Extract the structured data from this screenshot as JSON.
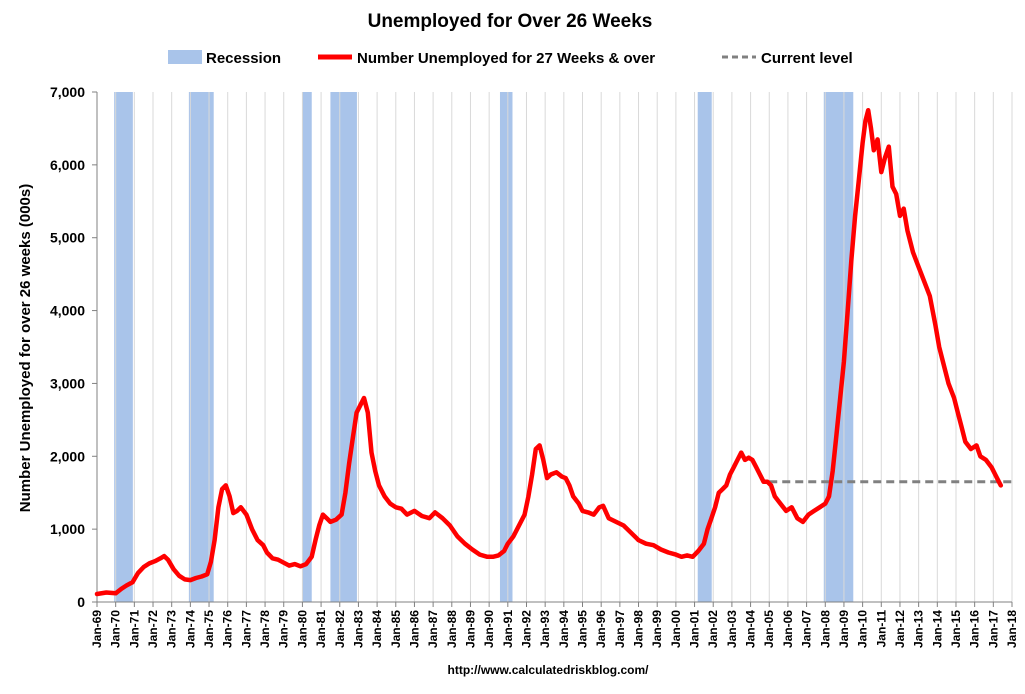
{
  "chart_data": {
    "type": "line",
    "title": "Unemployed for Over 26 Weeks",
    "ylabel": "Number Unemployed for over 26 weeks (000s)",
    "xlabel": "",
    "ylim": [
      0,
      7000
    ],
    "y_ticks": [
      "0",
      "1,000",
      "2,000",
      "3,000",
      "4,000",
      "5,000",
      "6,000",
      "7,000"
    ],
    "x_ticks": [
      "Jan-69",
      "Jan-70",
      "Jan-71",
      "Jan-72",
      "Jan-73",
      "Jan-74",
      "Jan-75",
      "Jan-76",
      "Jan-77",
      "Jan-78",
      "Jan-79",
      "Jan-80",
      "Jan-81",
      "Jan-82",
      "Jan-83",
      "Jan-84",
      "Jan-85",
      "Jan-86",
      "Jan-87",
      "Jan-88",
      "Jan-89",
      "Jan-90",
      "Jan-91",
      "Jan-92",
      "Jan-93",
      "Jan-94",
      "Jan-95",
      "Jan-96",
      "Jan-97",
      "Jan-98",
      "Jan-99",
      "Jan-00",
      "Jan-01",
      "Jan-02",
      "Jan-03",
      "Jan-04",
      "Jan-05",
      "Jan-06",
      "Jan-07",
      "Jan-08",
      "Jan-09",
      "Jan-10",
      "Jan-11",
      "Jan-12",
      "Jan-13",
      "Jan-14",
      "Jan-15",
      "Jan-16",
      "Jan-17",
      "Jan-18"
    ],
    "x_range": [
      1969.0,
      2018.0
    ],
    "grid": "vertical",
    "legend_position": "top",
    "legend": {
      "recession": "Recession",
      "series": "Number Unemployed for 27 Weeks & over",
      "current": "Current level"
    },
    "colors": {
      "recession": "#a9c4ea",
      "series": "#ff0000",
      "current": "#808080",
      "grid": "#d9d9d9"
    },
    "recessions": [
      {
        "start": 1969.92,
        "end": 1970.92
      },
      {
        "start": 1973.92,
        "end": 1975.25
      },
      {
        "start": 1980.0,
        "end": 1980.5
      },
      {
        "start": 1981.5,
        "end": 1982.92
      },
      {
        "start": 1990.58,
        "end": 1991.25
      },
      {
        "start": 2001.17,
        "end": 2001.92
      },
      {
        "start": 2007.92,
        "end": 2009.5
      }
    ],
    "current_level": {
      "value": 1650,
      "from": 2005.0,
      "to": 2018.0
    },
    "series": [
      {
        "name": "Number Unemployed for 27 Weeks & over",
        "points": [
          [
            1969.0,
            110
          ],
          [
            1969.5,
            130
          ],
          [
            1970.0,
            120
          ],
          [
            1970.3,
            180
          ],
          [
            1970.6,
            230
          ],
          [
            1970.9,
            270
          ],
          [
            1971.2,
            400
          ],
          [
            1971.5,
            480
          ],
          [
            1971.8,
            530
          ],
          [
            1972.1,
            560
          ],
          [
            1972.4,
            600
          ],
          [
            1972.6,
            630
          ],
          [
            1972.8,
            580
          ],
          [
            1973.1,
            450
          ],
          [
            1973.4,
            360
          ],
          [
            1973.7,
            310
          ],
          [
            1974.0,
            300
          ],
          [
            1974.3,
            330
          ],
          [
            1974.6,
            350
          ],
          [
            1974.9,
            380
          ],
          [
            1975.1,
            550
          ],
          [
            1975.3,
            850
          ],
          [
            1975.5,
            1300
          ],
          [
            1975.7,
            1550
          ],
          [
            1975.9,
            1600
          ],
          [
            1976.1,
            1450
          ],
          [
            1976.3,
            1220
          ],
          [
            1976.5,
            1250
          ],
          [
            1976.7,
            1300
          ],
          [
            1977.0,
            1200
          ],
          [
            1977.3,
            1000
          ],
          [
            1977.6,
            850
          ],
          [
            1977.9,
            780
          ],
          [
            1978.1,
            680
          ],
          [
            1978.4,
            600
          ],
          [
            1978.7,
            580
          ],
          [
            1979.0,
            540
          ],
          [
            1979.3,
            500
          ],
          [
            1979.6,
            520
          ],
          [
            1979.9,
            490
          ],
          [
            1980.2,
            520
          ],
          [
            1980.5,
            620
          ],
          [
            1980.7,
            850
          ],
          [
            1980.9,
            1050
          ],
          [
            1981.1,
            1200
          ],
          [
            1981.3,
            1150
          ],
          [
            1981.5,
            1100
          ],
          [
            1981.8,
            1130
          ],
          [
            1982.1,
            1200
          ],
          [
            1982.3,
            1500
          ],
          [
            1982.5,
            1900
          ],
          [
            1982.7,
            2250
          ],
          [
            1982.9,
            2600
          ],
          [
            1983.1,
            2700
          ],
          [
            1983.3,
            2800
          ],
          [
            1983.5,
            2600
          ],
          [
            1983.7,
            2050
          ],
          [
            1983.9,
            1800
          ],
          [
            1984.1,
            1600
          ],
          [
            1984.4,
            1450
          ],
          [
            1984.7,
            1350
          ],
          [
            1985.0,
            1300
          ],
          [
            1985.3,
            1280
          ],
          [
            1985.6,
            1200
          ],
          [
            1986.0,
            1250
          ],
          [
            1986.4,
            1180
          ],
          [
            1986.8,
            1150
          ],
          [
            1987.1,
            1230
          ],
          [
            1987.5,
            1150
          ],
          [
            1987.9,
            1050
          ],
          [
            1988.3,
            900
          ],
          [
            1988.7,
            800
          ],
          [
            1989.1,
            720
          ],
          [
            1989.5,
            650
          ],
          [
            1989.9,
            620
          ],
          [
            1990.2,
            620
          ],
          [
            1990.5,
            640
          ],
          [
            1990.8,
            700
          ],
          [
            1991.0,
            800
          ],
          [
            1991.3,
            900
          ],
          [
            1991.6,
            1050
          ],
          [
            1991.9,
            1200
          ],
          [
            1992.1,
            1450
          ],
          [
            1992.3,
            1750
          ],
          [
            1992.5,
            2100
          ],
          [
            1992.7,
            2150
          ],
          [
            1992.9,
            1950
          ],
          [
            1993.1,
            1700
          ],
          [
            1993.3,
            1750
          ],
          [
            1993.6,
            1780
          ],
          [
            1993.9,
            1720
          ],
          [
            1994.1,
            1700
          ],
          [
            1994.3,
            1600
          ],
          [
            1994.5,
            1450
          ],
          [
            1994.8,
            1350
          ],
          [
            1995.0,
            1250
          ],
          [
            1995.3,
            1230
          ],
          [
            1995.6,
            1200
          ],
          [
            1995.9,
            1300
          ],
          [
            1996.1,
            1320
          ],
          [
            1996.4,
            1150
          ],
          [
            1996.8,
            1100
          ],
          [
            1997.2,
            1050
          ],
          [
            1997.6,
            950
          ],
          [
            1998.0,
            850
          ],
          [
            1998.4,
            800
          ],
          [
            1998.8,
            780
          ],
          [
            1999.2,
            720
          ],
          [
            1999.6,
            680
          ],
          [
            2000.0,
            650
          ],
          [
            2000.3,
            620
          ],
          [
            2000.6,
            640
          ],
          [
            2000.9,
            620
          ],
          [
            2001.2,
            700
          ],
          [
            2001.5,
            800
          ],
          [
            2001.7,
            1000
          ],
          [
            2001.9,
            1150
          ],
          [
            2002.1,
            1300
          ],
          [
            2002.3,
            1500
          ],
          [
            2002.5,
            1550
          ],
          [
            2002.7,
            1600
          ],
          [
            2002.9,
            1750
          ],
          [
            2003.1,
            1850
          ],
          [
            2003.3,
            1950
          ],
          [
            2003.5,
            2050
          ],
          [
            2003.7,
            1950
          ],
          [
            2003.9,
            1980
          ],
          [
            2004.1,
            1950
          ],
          [
            2004.3,
            1850
          ],
          [
            2004.5,
            1750
          ],
          [
            2004.7,
            1650
          ],
          [
            2004.9,
            1650
          ],
          [
            2005.1,
            1600
          ],
          [
            2005.3,
            1450
          ],
          [
            2005.6,
            1350
          ],
          [
            2005.9,
            1250
          ],
          [
            2006.2,
            1300
          ],
          [
            2006.5,
            1150
          ],
          [
            2006.8,
            1100
          ],
          [
            2007.1,
            1200
          ],
          [
            2007.4,
            1250
          ],
          [
            2007.7,
            1300
          ],
          [
            2008.0,
            1350
          ],
          [
            2008.2,
            1450
          ],
          [
            2008.4,
            1800
          ],
          [
            2008.6,
            2300
          ],
          [
            2008.8,
            2800
          ],
          [
            2009.0,
            3300
          ],
          [
            2009.2,
            4000
          ],
          [
            2009.4,
            4700
          ],
          [
            2009.6,
            5300
          ],
          [
            2009.8,
            5800
          ],
          [
            2010.0,
            6300
          ],
          [
            2010.15,
            6600
          ],
          [
            2010.3,
            6750
          ],
          [
            2010.45,
            6500
          ],
          [
            2010.6,
            6200
          ],
          [
            2010.8,
            6350
          ],
          [
            2011.0,
            5900
          ],
          [
            2011.2,
            6100
          ],
          [
            2011.4,
            6250
          ],
          [
            2011.6,
            5700
          ],
          [
            2011.8,
            5600
          ],
          [
            2012.0,
            5300
          ],
          [
            2012.2,
            5400
          ],
          [
            2012.4,
            5100
          ],
          [
            2012.7,
            4800
          ],
          [
            2013.0,
            4600
          ],
          [
            2013.3,
            4400
          ],
          [
            2013.6,
            4200
          ],
          [
            2013.9,
            3800
          ],
          [
            2014.1,
            3500
          ],
          [
            2014.3,
            3300
          ],
          [
            2014.6,
            3000
          ],
          [
            2014.9,
            2800
          ],
          [
            2015.1,
            2600
          ],
          [
            2015.3,
            2400
          ],
          [
            2015.5,
            2200
          ],
          [
            2015.8,
            2100
          ],
          [
            2016.1,
            2150
          ],
          [
            2016.3,
            2000
          ],
          [
            2016.6,
            1950
          ],
          [
            2016.9,
            1850
          ],
          [
            2017.1,
            1750
          ],
          [
            2017.3,
            1650
          ],
          [
            2017.4,
            1600
          ]
        ]
      }
    ]
  },
  "footer": "http://www.calculatedriskblog.com/"
}
